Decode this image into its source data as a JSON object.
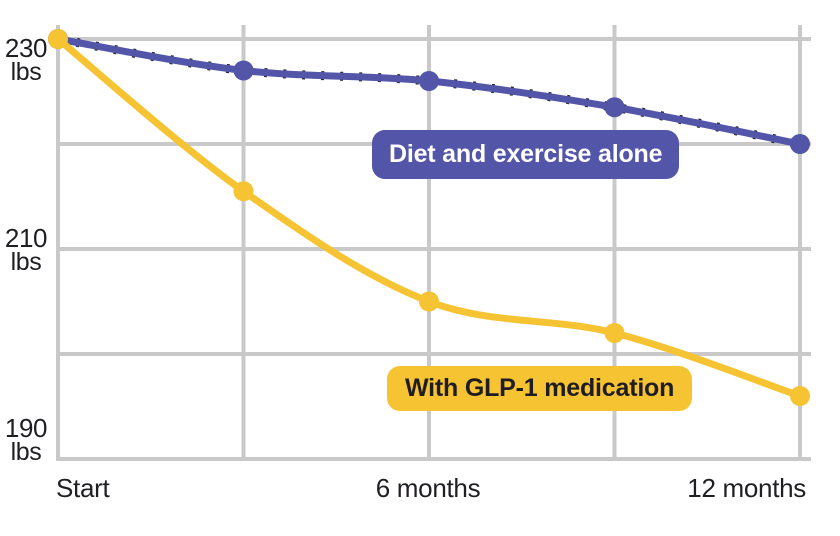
{
  "chart_data": {
    "type": "line",
    "title": "",
    "x_unit": "months",
    "x": [
      0,
      3,
      6,
      9,
      12
    ],
    "x_tick_labels": [
      "Start",
      "6 months",
      "12 months"
    ],
    "x_tick_months": [
      0,
      6,
      12
    ],
    "y_unit": "lbs",
    "ylim": [
      190,
      230
    ],
    "y_gridlines": [
      230,
      220,
      210,
      200,
      190
    ],
    "grid": true,
    "legend_position": "inline-labels-on-chart",
    "series": [
      {
        "name": "Diet and exercise alone",
        "color": "#5355A8",
        "values": [
          230,
          227,
          226,
          223.5,
          220
        ]
      },
      {
        "name": "With GLP-1 medication",
        "color": "#F6C332",
        "values": [
          230,
          215.5,
          205,
          202,
          196
        ]
      }
    ]
  },
  "axis": {
    "y_ticks": [
      {
        "value": "230",
        "unit": "lbs"
      },
      {
        "value": "210",
        "unit": "lbs"
      },
      {
        "value": "190",
        "unit": "lbs"
      }
    ],
    "x_ticks": [
      "Start",
      "6 months",
      "12 months"
    ]
  },
  "labels": {
    "diet": "Diet and exercise alone",
    "glp1": "With GLP-1 medication"
  },
  "colors": {
    "purple": "#5355A8",
    "yellow": "#F6C332",
    "grid": "#C9C9C9",
    "text": "#201E23",
    "speckle": "#26242a",
    "background": "#FFFFFF"
  }
}
